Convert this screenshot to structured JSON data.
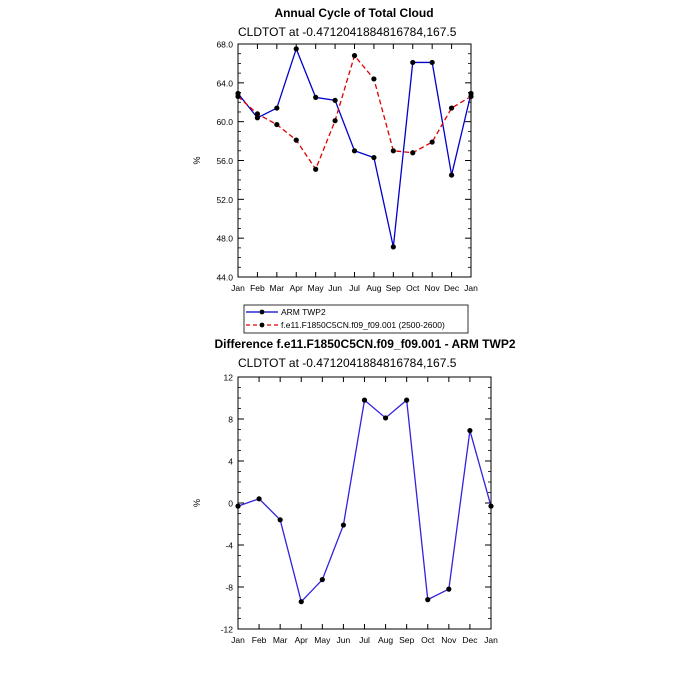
{
  "chart_data": [
    {
      "type": "line",
      "title": "Annual Cycle of Total Cloud",
      "subtitle": "CLDTOT at -0.4712041884816784,167.5",
      "xlabel": "",
      "ylabel": "%",
      "categories": [
        "Jan",
        "Feb",
        "Mar",
        "Apr",
        "May",
        "Jun",
        "Jul",
        "Aug",
        "Sep",
        "Oct",
        "Nov",
        "Dec",
        "Jan"
      ],
      "ylim": [
        44.0,
        68.0
      ],
      "yticks": [
        "44.0",
        "48.0",
        "52.0",
        "56.0",
        "60.0",
        "64.0",
        "68.0"
      ],
      "grid": false,
      "legend_position": "bottom-left",
      "series": [
        {
          "name": "ARM TWP2",
          "color": "#0000cc",
          "dash": "solid",
          "values": [
            62.9,
            60.4,
            61.4,
            67.5,
            62.5,
            62.2,
            57.0,
            56.3,
            47.1,
            66.1,
            66.1,
            54.5,
            62.9
          ]
        },
        {
          "name": "f.e11.F1850C5CN.f09_f09.001 (2500-2600)",
          "color": "#dd0000",
          "dash": "dashed",
          "values": [
            62.6,
            60.8,
            59.7,
            58.1,
            55.1,
            60.1,
            66.8,
            64.4,
            57.0,
            56.8,
            57.9,
            61.4,
            62.6
          ]
        }
      ]
    },
    {
      "type": "line",
      "title": "Difference f.e11.F1850C5CN.f09_f09.001 - ARM TWP2",
      "subtitle": "CLDTOT at -0.4712041884816784,167.5",
      "xlabel": "",
      "ylabel": "%",
      "categories": [
        "Jan",
        "Feb",
        "Mar",
        "Apr",
        "May",
        "Jun",
        "Jul",
        "Aug",
        "Sep",
        "Oct",
        "Nov",
        "Dec",
        "Jan"
      ],
      "ylim": [
        -12,
        12
      ],
      "yticks": [
        "-12",
        "-8",
        "-4",
        "0",
        "4",
        "8",
        "12"
      ],
      "grid": false,
      "series": [
        {
          "color": "#3322dd",
          "dash": "solid",
          "values": [
            -0.3,
            0.4,
            -1.6,
            -9.4,
            -7.3,
            -2.1,
            9.8,
            8.1,
            9.8,
            -9.2,
            -8.2,
            6.9,
            -0.3
          ]
        }
      ]
    }
  ]
}
